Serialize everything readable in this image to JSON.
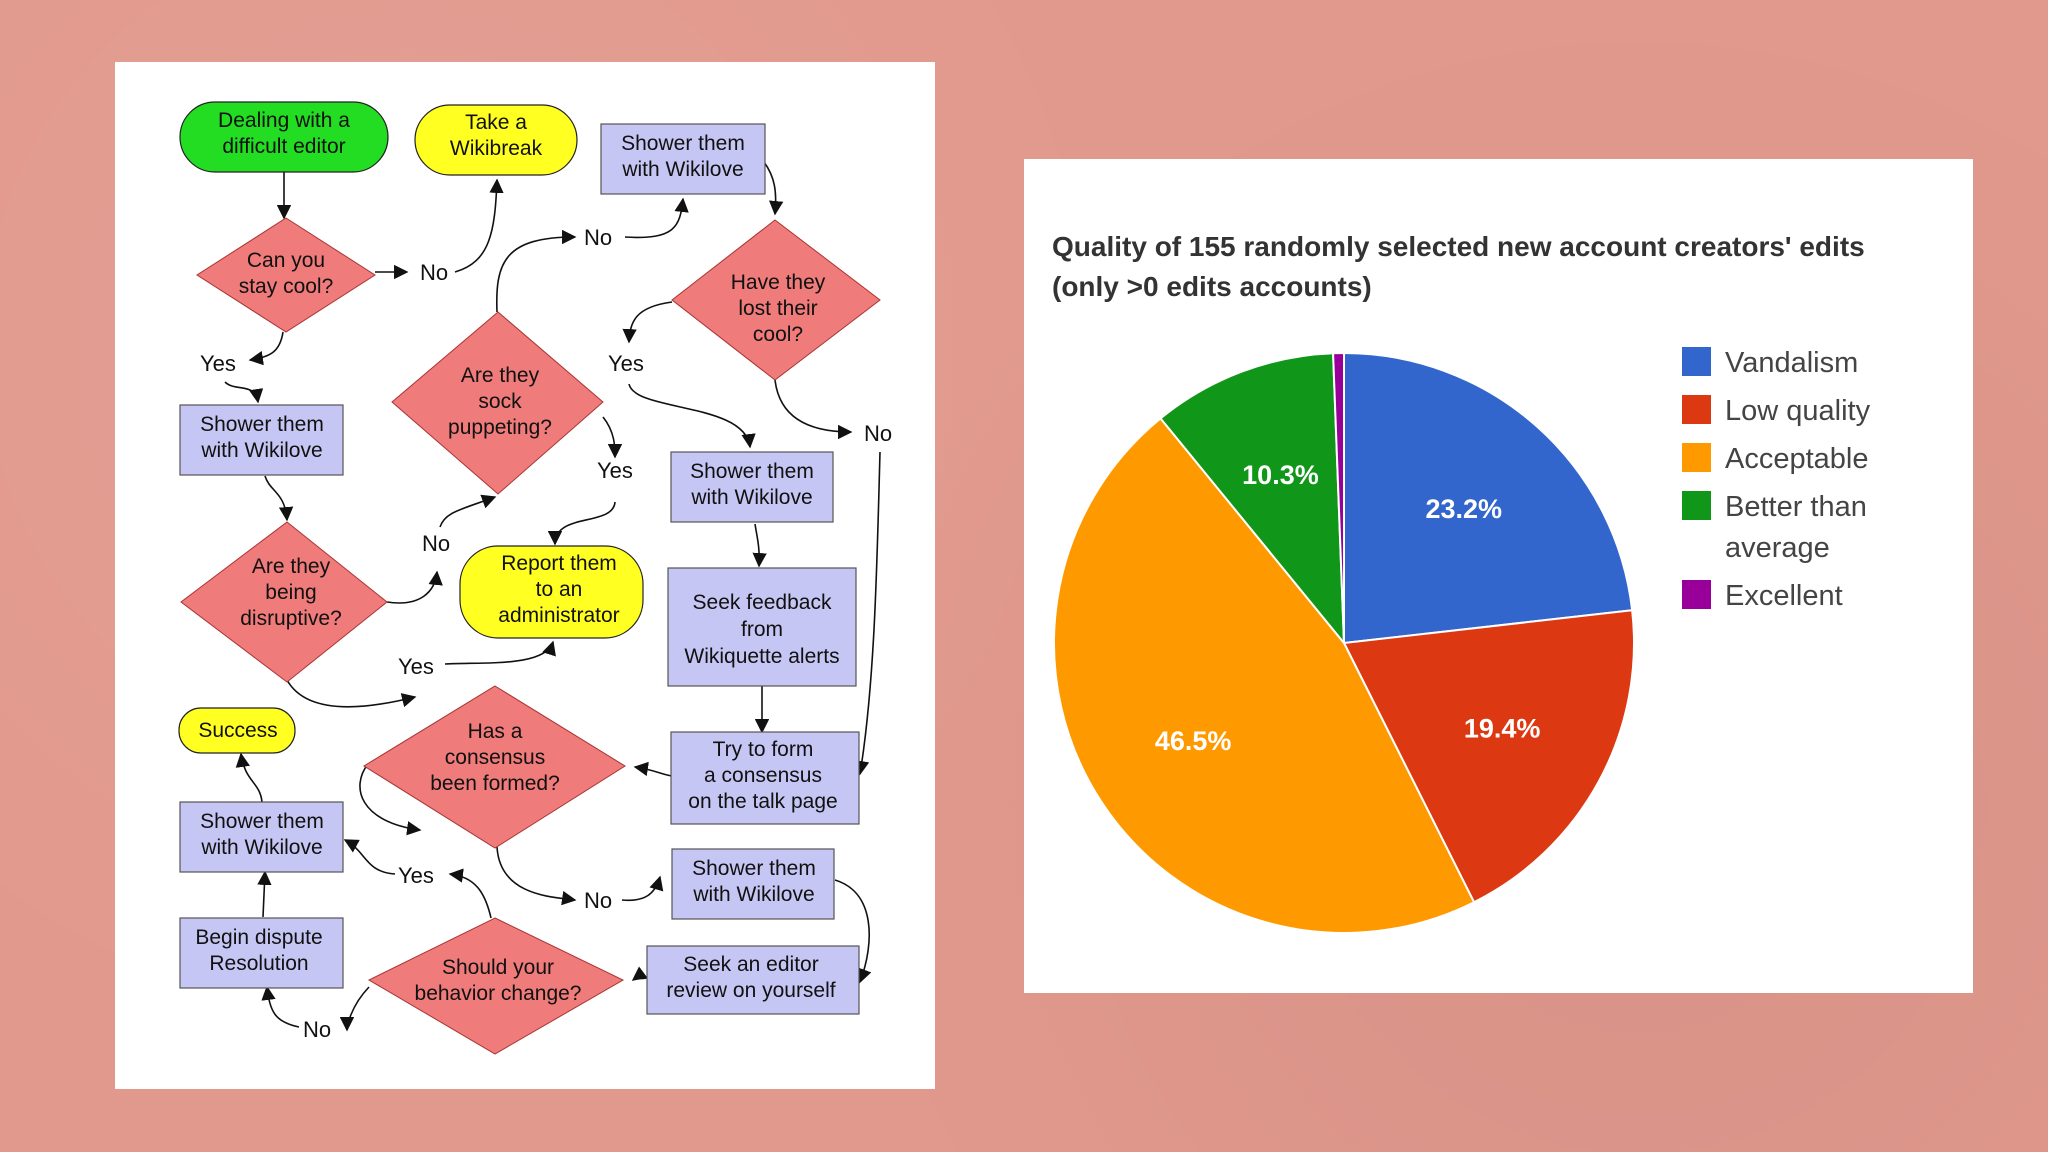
{
  "flowchart": {
    "nodes": {
      "start": [
        "Dealing with a",
        "difficult editor"
      ],
      "wikibreak": [
        "Take a",
        "Wikibreak"
      ],
      "shower_top": [
        "Shower them",
        "with Wikilove"
      ],
      "stay_cool": [
        "Can you",
        "stay cool?"
      ],
      "lost_cool": [
        "Have they",
        "lost their",
        "cool?"
      ],
      "sock": [
        "Are they",
        "sock",
        "puppeting?"
      ],
      "shower_left1": [
        "Shower them",
        "with Wikilove"
      ],
      "shower_mid": [
        "Shower them",
        "with Wikilove"
      ],
      "disruptive": [
        "Are they",
        "being",
        "disruptive?"
      ],
      "report": [
        "Report them",
        "to an",
        "administrator"
      ],
      "feedback": [
        "Seek feedback",
        "from",
        "Wikiquette alerts"
      ],
      "success": [
        "Success"
      ],
      "consensus_q": [
        "Has a",
        "consensus",
        "been formed?"
      ],
      "consensus_try": [
        "Try to form",
        "a consensus",
        "on the talk page"
      ],
      "shower_left2": [
        "Shower them",
        "with Wikilove"
      ],
      "shower_low": [
        "Shower them",
        "with Wikilove"
      ],
      "dispute": [
        "Begin dispute",
        "Resolution"
      ],
      "behavior": [
        "Should your",
        "behavior change?"
      ],
      "review": [
        "Seek an editor",
        "review on yourself"
      ]
    },
    "edge_labels": {
      "no_stay": "No",
      "no_sock_top": "No",
      "yes_lost": "Yes",
      "yes_stay": "Yes",
      "no_lost": "No",
      "yes_sock": "Yes",
      "no_disruptive": "No",
      "yes_disruptive": "Yes",
      "yes_consensus": "Yes",
      "no_consensus": "No",
      "no_behavior": "No"
    },
    "colors": {
      "terminal_green": "#22dd22",
      "terminal_yellow": "#ffff22",
      "process": "#c6c6f4",
      "decision": "#ef7b7b"
    }
  },
  "chart_data": {
    "type": "pie",
    "title": [
      "Quality of 155 randomly selected new account creators' edits",
      "(only >0 edits accounts)"
    ],
    "slices": [
      {
        "name": "Vandalism",
        "value": 23.2,
        "label": "23.2%",
        "color": "#3366cc"
      },
      {
        "name": "Low quality",
        "value": 19.4,
        "label": "19.4%",
        "color": "#dc3912"
      },
      {
        "name": "Acceptable",
        "value": 46.5,
        "label": "46.5%",
        "color": "#ff9900"
      },
      {
        "name": "Better than average",
        "value": 10.3,
        "label": "10.3%",
        "color": "#109618"
      },
      {
        "name": "Excellent",
        "value": 0.6,
        "label": "",
        "color": "#990099"
      }
    ],
    "legend": {
      "position": "right",
      "entries": [
        [
          "Vandalism"
        ],
        [
          "Low quality"
        ],
        [
          "Acceptable"
        ],
        [
          "Better than",
          "average"
        ],
        [
          "Excellent"
        ]
      ]
    }
  }
}
